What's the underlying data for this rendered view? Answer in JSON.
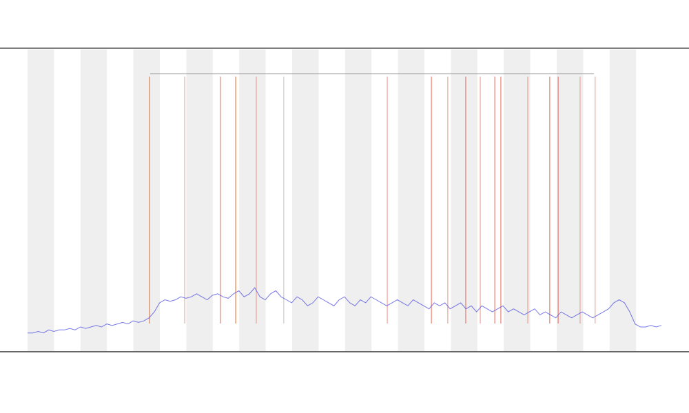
{
  "chart_data": {
    "type": "line",
    "x": [
      0,
      2,
      4,
      6,
      8,
      10,
      12,
      14,
      16,
      18,
      20,
      22,
      24,
      26,
      28,
      30,
      32,
      34,
      36,
      38,
      40,
      42,
      44,
      46,
      48,
      50,
      52,
      54,
      56,
      58,
      60,
      62,
      64,
      66,
      68,
      70,
      72,
      74,
      76,
      78,
      80,
      82,
      84,
      86,
      88,
      90,
      92,
      94,
      96,
      98,
      100,
      102,
      104,
      106,
      108,
      110,
      112,
      114,
      116,
      118,
      120,
      122,
      124,
      126,
      128,
      130,
      132,
      134,
      136,
      138,
      140,
      142,
      144,
      146,
      148,
      150,
      152,
      154,
      156,
      158,
      160,
      162,
      164,
      166,
      168,
      170,
      172,
      174,
      176,
      178,
      180,
      182,
      184,
      186,
      188,
      190,
      192,
      194,
      196,
      198,
      200,
      202,
      204,
      206,
      208,
      210,
      212,
      214,
      216,
      218,
      220,
      222,
      224,
      226,
      228,
      230,
      232,
      234,
      236,
      238,
      240
    ],
    "xlim": [
      0,
      240
    ],
    "ylim": [
      0,
      100
    ],
    "series": [
      {
        "color": "#4a4ae0",
        "values": [
          6,
          6,
          6.5,
          6,
          7,
          6.5,
          7,
          7,
          7.5,
          7,
          8,
          7.5,
          8,
          8.5,
          8,
          9,
          8.5,
          9,
          9.5,
          9,
          10,
          9.5,
          10,
          11,
          13,
          16,
          17,
          16.5,
          17,
          18,
          17.5,
          18,
          19,
          18,
          17,
          18.5,
          19,
          18,
          17.5,
          19,
          20,
          18,
          19,
          21,
          18,
          17,
          19,
          20,
          18,
          17,
          16,
          18,
          17,
          15,
          16,
          18,
          17,
          16,
          15,
          17,
          18,
          16,
          15,
          17,
          16,
          18,
          17,
          16,
          15,
          16,
          17,
          16,
          15,
          17,
          16,
          15,
          14,
          16,
          15,
          16,
          14,
          15,
          16,
          14,
          15,
          13,
          15,
          14,
          13,
          14,
          15,
          13,
          14,
          13,
          12,
          13,
          14,
          12,
          13,
          12,
          11,
          13,
          12,
          11,
          12,
          13,
          12,
          11,
          12,
          13,
          14,
          16,
          17,
          16,
          13,
          9,
          8,
          8,
          8.5,
          8,
          8.5
        ]
      }
    ],
    "events": {
      "x": [
        46.2,
        59.5,
        73,
        78.8,
        86.6,
        97,
        136.2,
        152.9,
        159.1,
        165.9,
        171.4,
        176.9,
        179.2,
        189.4,
        197.7,
        200.9,
        209.2,
        214.9
      ],
      "top": [
        91,
        91,
        91,
        91,
        91,
        91,
        91,
        91,
        91,
        91,
        91,
        91,
        91,
        91,
        91,
        91,
        91,
        91
      ],
      "colors": [
        "#e8601c",
        "#c8a0a0",
        "#e86050",
        "#e8601c",
        "#e89080",
        "#c0c0c0",
        "#e89080",
        "#e86050",
        "#e89080",
        "#e86050",
        "#e89080",
        "#e86050",
        "#e86050",
        "#e89080",
        "#e86050",
        "#e86050",
        "#e89080",
        "#e89080"
      ]
    }
  }
}
